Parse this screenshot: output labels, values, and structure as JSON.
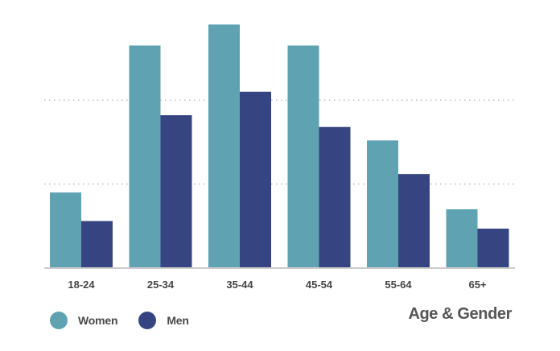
{
  "chart_data": {
    "type": "bar",
    "categories": [
      "18-24",
      "25-34",
      "35-44",
      "45-54",
      "55-64",
      "65+"
    ],
    "series": [
      {
        "name": "Women",
        "color": "#5fa2b1",
        "values": [
          9,
          26.5,
          29,
          26.5,
          15.2,
          7
        ]
      },
      {
        "name": "Men",
        "color": "#364582",
        "values": [
          5.6,
          18.2,
          21,
          16.8,
          11.2,
          4.7
        ]
      }
    ],
    "ylim": [
      0,
      30
    ],
    "gridlines": [
      10,
      20
    ],
    "grid": true,
    "legend_position": "bottom-left",
    "title": "Age & Gender"
  }
}
